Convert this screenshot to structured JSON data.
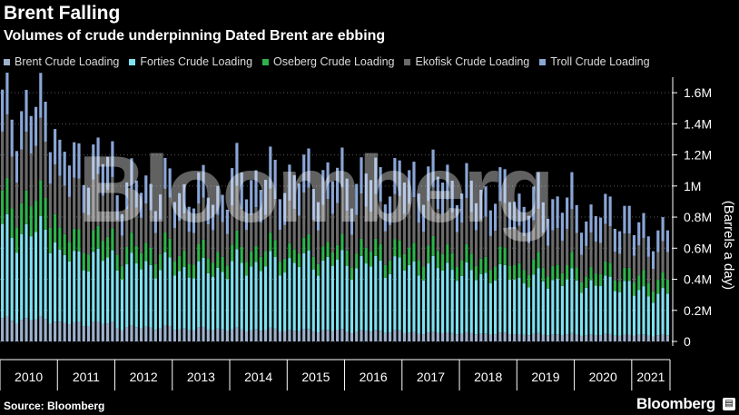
{
  "header": {
    "title": "Brent Falling",
    "subtitle": "Volumes of crude underpinning Dated Brent are ebbing"
  },
  "footer": {
    "source": "Source: Bloomberg",
    "brand": "Bloomberg"
  },
  "watermark": "Bloomberg",
  "colors": {
    "brent": "#9db1cc",
    "forties": "#7fe0ef",
    "oseberg": "#2fb24d",
    "ekofisk": "#6b6b6b",
    "troll": "#8aa6d6",
    "background": "#000000",
    "grid": "#ffffff"
  },
  "chart_data": {
    "type": "bar",
    "stacked": true,
    "x_start": "2010-01",
    "x_end": "2021-08",
    "x_ticks": [
      "2010",
      "2011",
      "2012",
      "2013",
      "2014",
      "2015",
      "2016",
      "2017",
      "2018",
      "2019",
      "2020",
      "2021"
    ],
    "y_ticks": [
      "0",
      "0.2M",
      "0.4M",
      "0.6M",
      "0.8M",
      "1M",
      "1.2M",
      "1.4M",
      "1.6M"
    ],
    "ylim": [
      0,
      1700000
    ],
    "ylabel": "(Barrels a day)",
    "legend_position": "top",
    "grid": true,
    "series": [
      {
        "name": "Brent Crude Loading",
        "color_key": "brent",
        "annual_avg": [
          140000,
          115000,
          90000,
          80000,
          75000,
          70000,
          65000,
          55000,
          50000,
          45000,
          42000,
          40000
        ]
      },
      {
        "name": "Forties Crude Loading",
        "color_key": "forties",
        "annual_avg": [
          560000,
          420000,
          400000,
          380000,
          420000,
          440000,
          430000,
          420000,
          380000,
          350000,
          330000,
          270000
        ]
      },
      {
        "name": "Oseberg Crude Loading",
        "color_key": "oseberg",
        "annual_avg": [
          200000,
          130000,
          110000,
          100000,
          100000,
          90000,
          100000,
          110000,
          100000,
          90000,
          80000,
          90000
        ]
      },
      {
        "name": "Ekofisk Crude Loading",
        "color_key": "ekofisk",
        "annual_avg": [
          350000,
          300000,
          240000,
          230000,
          240000,
          260000,
          260000,
          270000,
          250000,
          230000,
          210000,
          180000
        ]
      },
      {
        "name": "Troll Crude Loading",
        "color_key": "troll",
        "annual_avg": [
          250000,
          210000,
          170000,
          180000,
          230000,
          220000,
          210000,
          210000,
          190000,
          200000,
          170000,
          140000
        ]
      }
    ],
    "total_peak": 1600000,
    "total_latest": 800000
  }
}
